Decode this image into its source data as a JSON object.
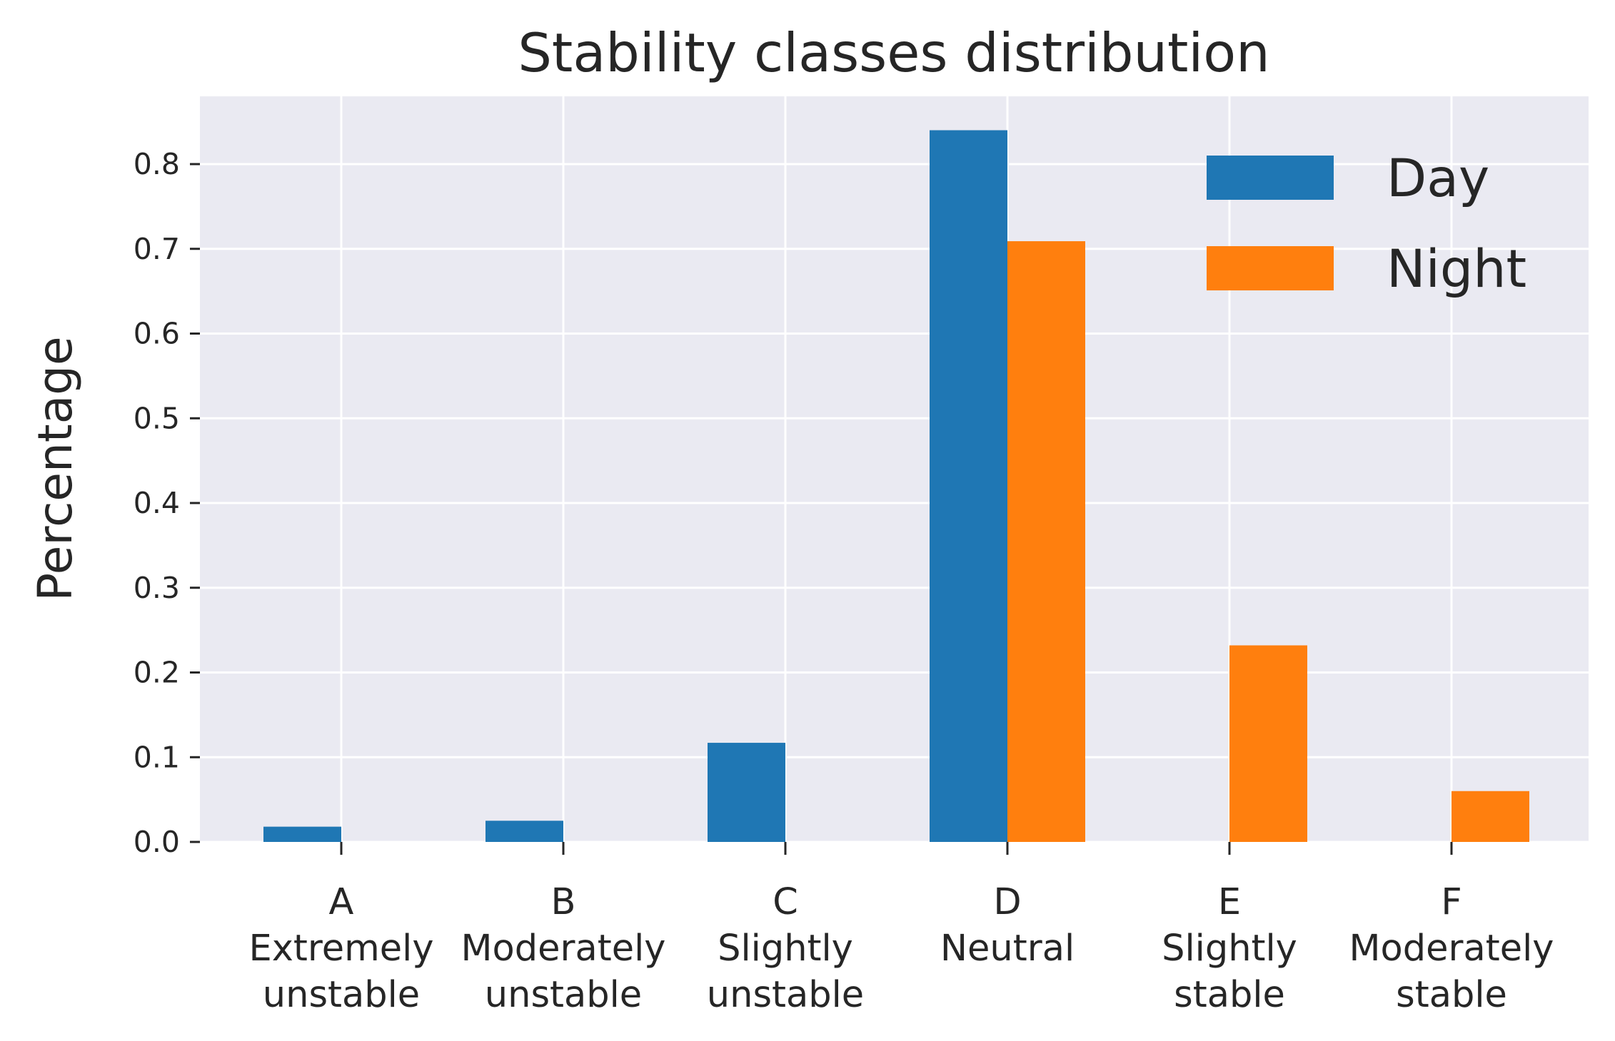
{
  "chart_data": {
    "type": "bar",
    "title": "Stability classes distribution",
    "xlabel": "",
    "ylabel": "Percentage",
    "categories": [
      [
        "A",
        "Extremely",
        "unstable"
      ],
      [
        "B",
        "Moderately",
        "unstable"
      ],
      [
        "C",
        "Slightly",
        "unstable"
      ],
      [
        "D",
        "Neutral"
      ],
      [
        "E",
        "Slightly",
        "stable"
      ],
      [
        "F",
        "Moderately",
        "stable"
      ]
    ],
    "series": [
      {
        "name": "Day",
        "color": "#1f77b4",
        "values": [
          0.018,
          0.025,
          0.117,
          0.84,
          0.0,
          0.0
        ]
      },
      {
        "name": "Night",
        "color": "#ff7f0e",
        "values": [
          0.0,
          0.0,
          0.0,
          0.709,
          0.232,
          0.06
        ]
      }
    ],
    "yticks": [
      "0.0",
      "0.1",
      "0.2",
      "0.3",
      "0.4",
      "0.5",
      "0.6",
      "0.7",
      "0.8"
    ],
    "ylim": [
      0,
      0.88
    ],
    "grid": true,
    "legend_position": "top-right",
    "plot_background": "#eaeaf2"
  }
}
